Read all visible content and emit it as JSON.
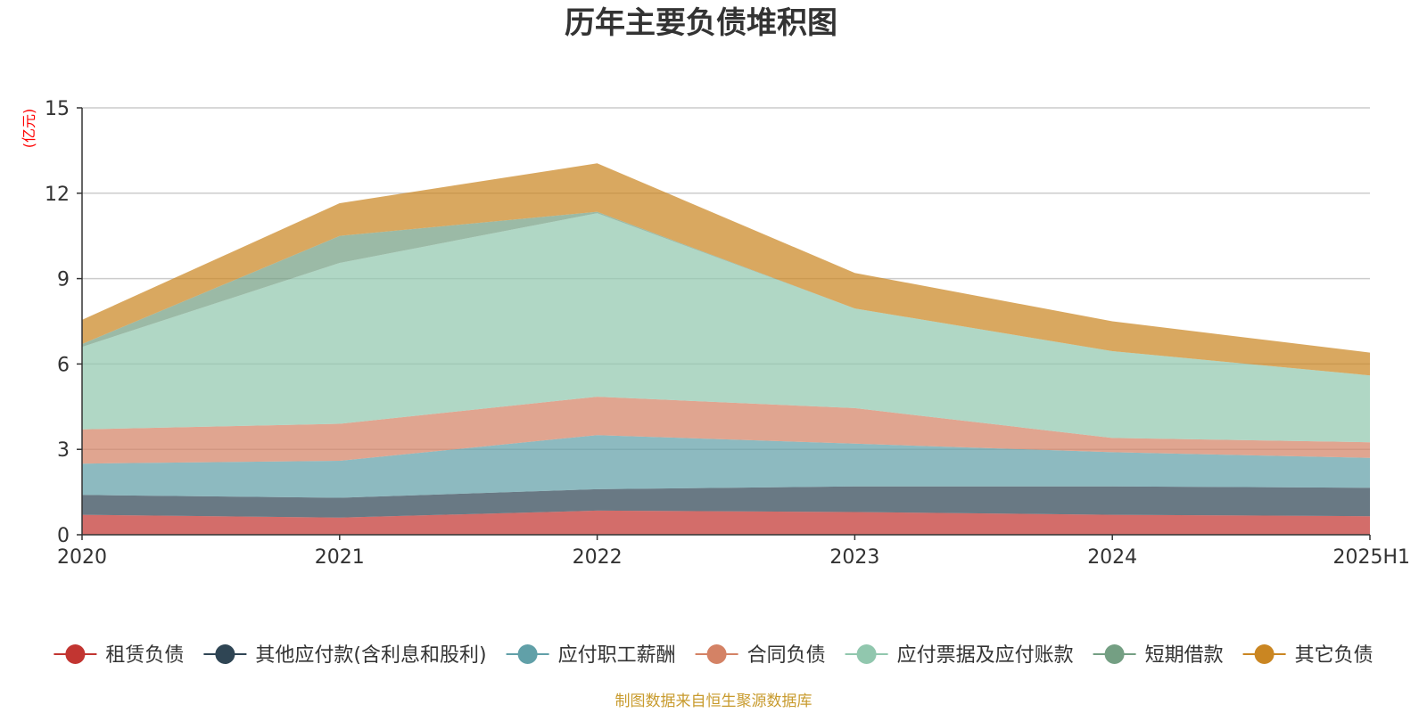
{
  "chart_data": {
    "type": "area",
    "stacked": true,
    "title": "历年主要负债堆积图",
    "y_unit": "(亿元)",
    "categories": [
      "2020",
      "2021",
      "2022",
      "2023",
      "2024",
      "2025H1"
    ],
    "ylim": [
      0,
      15
    ],
    "yticks": [
      0,
      3,
      6,
      9,
      12,
      15
    ],
    "grid": true,
    "legend_position": "bottom",
    "series": [
      {
        "name": "租赁负债",
        "color": "#c23531",
        "values": [
          0.7,
          0.6,
          0.85,
          0.8,
          0.7,
          0.65
        ]
      },
      {
        "name": "其他应付款(含利息和股利)",
        "color": "#2f4554",
        "values": [
          0.7,
          0.7,
          0.75,
          0.9,
          1.0,
          1.0
        ]
      },
      {
        "name": "应付职工薪酬",
        "color": "#61a0a8",
        "values": [
          1.1,
          1.3,
          1.9,
          1.5,
          1.2,
          1.05
        ]
      },
      {
        "name": "合同负债",
        "color": "#d48265",
        "values": [
          1.2,
          1.3,
          1.35,
          1.25,
          0.5,
          0.55
        ]
      },
      {
        "name": "应付票据及应付账款",
        "color": "#91c7ae",
        "values": [
          2.9,
          5.65,
          6.45,
          3.5,
          3.05,
          2.35
        ]
      },
      {
        "name": "短期借款",
        "color": "#749f83",
        "values": [
          0.1,
          0.95,
          0.05,
          0.0,
          0.0,
          0.0
        ]
      },
      {
        "name": "其它负债",
        "color": "#ca8622",
        "values": [
          0.85,
          1.15,
          1.7,
          1.25,
          1.05,
          0.8
        ]
      }
    ],
    "source": "制图数据来自恒生聚源数据库",
    "colors": {
      "text": "#333333",
      "axis": "#333333",
      "grid": "#cccccc",
      "unit": "#ff0000",
      "source": "#c89b2e"
    }
  }
}
